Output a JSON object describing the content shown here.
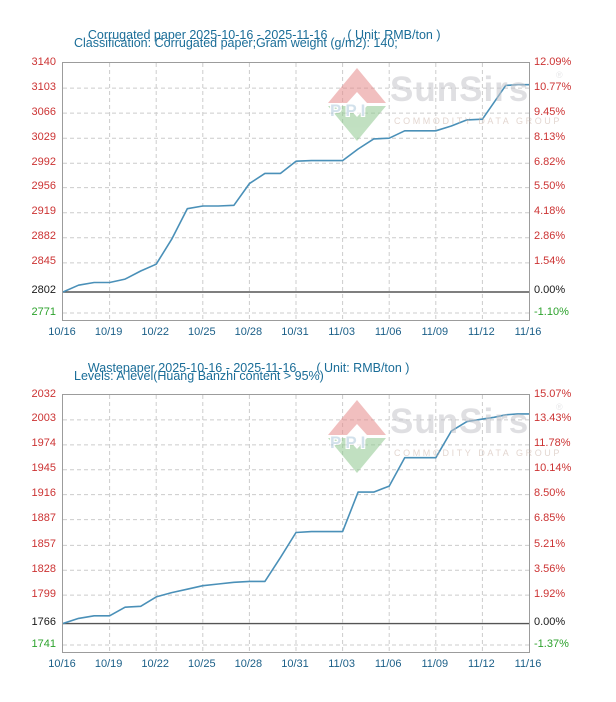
{
  "watermark": {
    "ppi": "PPI",
    "brand": "SunSirs",
    "reg": "®",
    "sub": "COMMODITY DATA GROUP"
  },
  "chart_data": [
    {
      "type": "line",
      "title": "Corrugated paper 2025-10-16 - 2025-11-16",
      "unit_label": "( Unit: RMB/ton )",
      "subtitle": "Classification: Corrugated paper;Gram weight (g/m2): 140;",
      "x": [
        "10/16",
        "10/17",
        "10/18",
        "10/19",
        "10/20",
        "10/21",
        "10/22",
        "10/23",
        "10/24",
        "10/25",
        "10/26",
        "10/27",
        "10/28",
        "10/29",
        "10/30",
        "10/31",
        "11/01",
        "11/02",
        "11/03",
        "11/04",
        "11/05",
        "11/06",
        "11/07",
        "11/08",
        "11/09",
        "11/10",
        "11/11",
        "11/12",
        "11/13",
        "11/14",
        "11/15",
        "11/16"
      ],
      "values": [
        2802,
        2812,
        2816,
        2816,
        2821,
        2833,
        2843,
        2880,
        2925,
        2929,
        2929,
        2930,
        2962,
        2977,
        2977,
        2995,
        2996,
        2996,
        2996,
        3013,
        3028,
        3029,
        3040,
        3040,
        3040,
        3047,
        3056,
        3057,
        3082,
        3107,
        3108,
        3108
      ],
      "x_tick_labels": [
        "10/16",
        "10/19",
        "10/22",
        "10/25",
        "10/28",
        "10/31",
        "11/03",
        "11/06",
        "11/09",
        "11/12",
        "11/16"
      ],
      "y_left_ticks": [
        3140,
        3103,
        3066,
        3029,
        2992,
        2956,
        2919,
        2882,
        2845,
        2802,
        2771
      ],
      "y_right_ticks": [
        "12.09%",
        "10.77%",
        "9.45%",
        "8.13%",
        "6.82%",
        "5.50%",
        "4.18%",
        "2.86%",
        "1.54%",
        "0.00%",
        "-1.10%"
      ],
      "y_tick_colors": [
        "red",
        "red",
        "red",
        "red",
        "red",
        "red",
        "red",
        "red",
        "red",
        "black",
        "green"
      ],
      "ylim": [
        2771,
        3140
      ],
      "base_value": 2802,
      "grid": true,
      "legend": "none",
      "line_color": "#4a90b8"
    },
    {
      "type": "line",
      "title": "Wastepaper 2025-10-16 - 2025-11-16",
      "unit_label": "( Unit: RMB/ton )",
      "subtitle": "Levels: A level(Huang Banzhi content > 95%)",
      "x": [
        "10/16",
        "10/17",
        "10/18",
        "10/19",
        "10/20",
        "10/21",
        "10/22",
        "10/23",
        "10/24",
        "10/25",
        "10/26",
        "10/27",
        "10/28",
        "10/29",
        "10/30",
        "10/31",
        "11/01",
        "11/02",
        "11/03",
        "11/04",
        "11/05",
        "11/06",
        "11/07",
        "11/08",
        "11/09",
        "11/10",
        "11/11",
        "11/12",
        "11/13",
        "11/14",
        "11/15",
        "11/16"
      ],
      "values": [
        1766,
        1772,
        1775,
        1775,
        1785,
        1786,
        1797,
        1802,
        1806,
        1810,
        1812,
        1814,
        1815,
        1815,
        1843,
        1872,
        1873,
        1873,
        1873,
        1919,
        1919,
        1926,
        1959,
        1959,
        1959,
        1990,
        2001,
        2004,
        2006,
        2009,
        2010,
        2010
      ],
      "x_tick_labels": [
        "10/16",
        "10/19",
        "10/22",
        "10/25",
        "10/28",
        "10/31",
        "11/03",
        "11/06",
        "11/09",
        "11/12",
        "11/16"
      ],
      "y_left_ticks": [
        2032,
        2003,
        1974,
        1945,
        1916,
        1887,
        1857,
        1828,
        1799,
        1766,
        1741
      ],
      "y_right_ticks": [
        "15.07%",
        "13.43%",
        "11.78%",
        "10.14%",
        "8.50%",
        "6.85%",
        "5.21%",
        "3.56%",
        "1.92%",
        "0.00%",
        "-1.37%"
      ],
      "y_tick_colors": [
        "red",
        "red",
        "red",
        "red",
        "red",
        "red",
        "red",
        "red",
        "red",
        "black",
        "green"
      ],
      "ylim": [
        1741,
        2032
      ],
      "base_value": 1766,
      "grid": true,
      "legend": "none",
      "line_color": "#4a90b8"
    }
  ]
}
